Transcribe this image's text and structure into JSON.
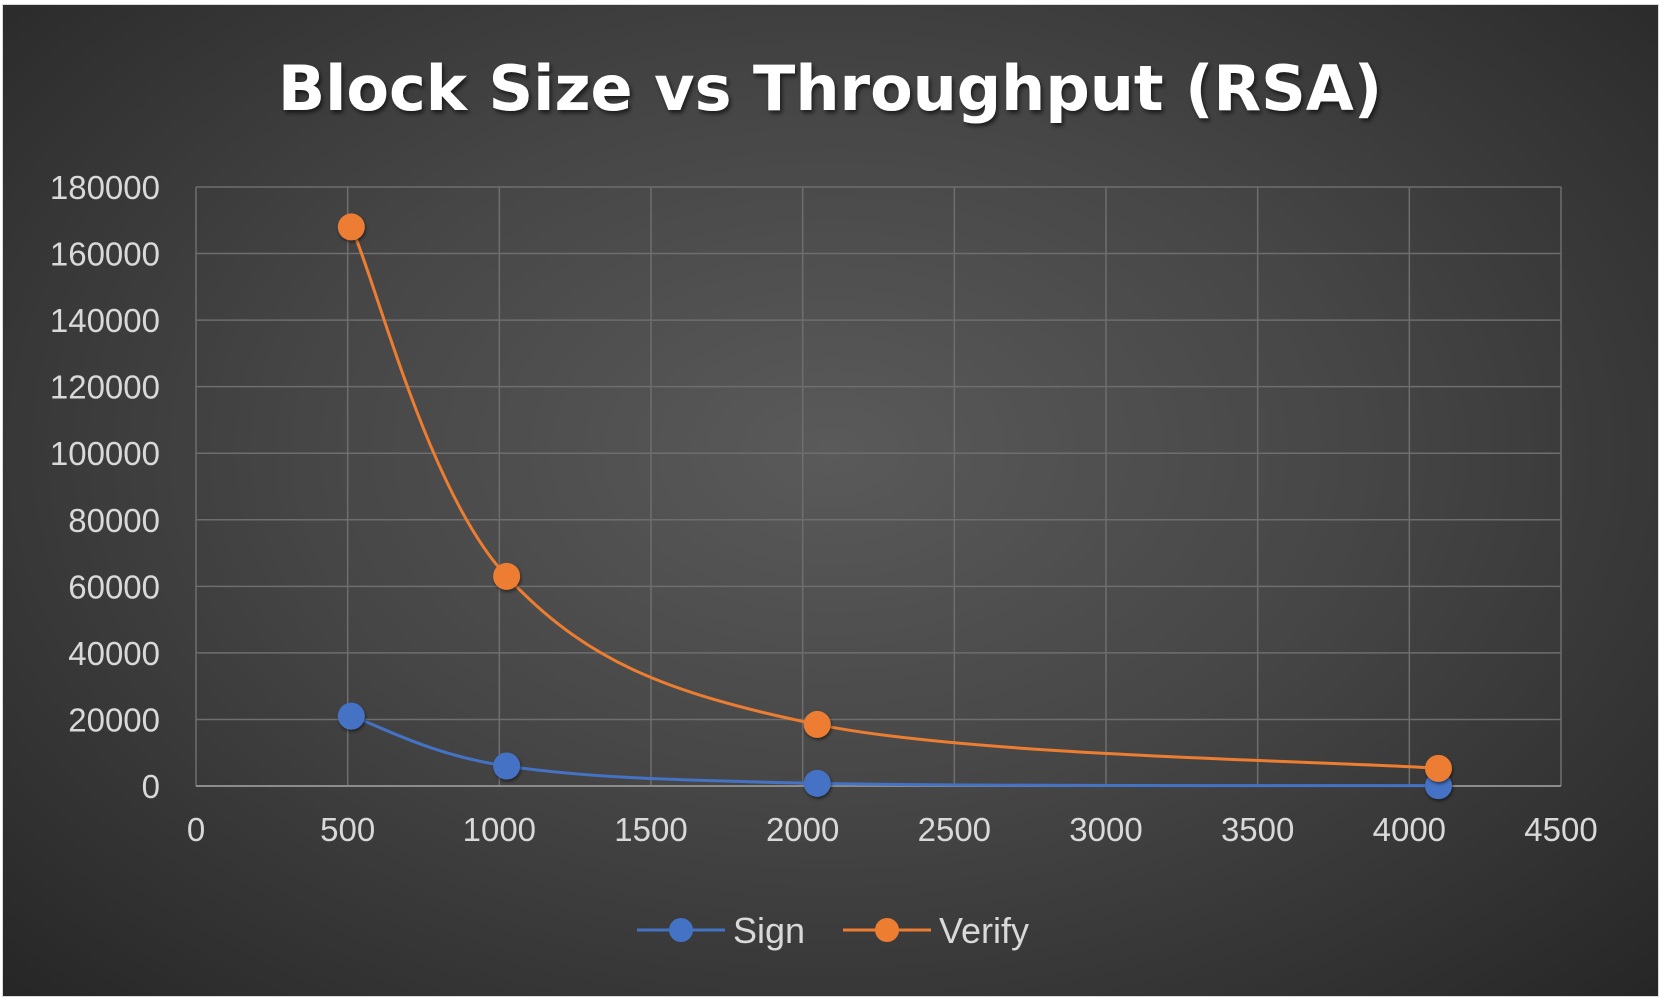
{
  "chart_data": {
    "type": "scatter",
    "title": "Block Size vs Throughput (RSA)",
    "xlabel": "",
    "ylabel": "",
    "xlim": [
      0,
      4500
    ],
    "ylim": [
      0,
      180000
    ],
    "x_ticks": [
      "0",
      "500",
      "1000",
      "1500",
      "2000",
      "2500",
      "3000",
      "3500",
      "4000",
      "4500"
    ],
    "y_ticks": [
      "0",
      "20000",
      "40000",
      "60000",
      "80000",
      "100000",
      "120000",
      "140000",
      "160000",
      "180000"
    ],
    "grid": true,
    "smoothed": true,
    "legend_position": "bottom",
    "series": [
      {
        "name": "Sign",
        "color": "#4472C4",
        "x": [
          512,
          1024,
          2048,
          4096
        ],
        "y": [
          21000,
          6000,
          800,
          100
        ]
      },
      {
        "name": "Verify",
        "color": "#ED7D31",
        "x": [
          512,
          1024,
          2048,
          4096
        ],
        "y": [
          168000,
          63000,
          18500,
          5300
        ]
      }
    ]
  }
}
